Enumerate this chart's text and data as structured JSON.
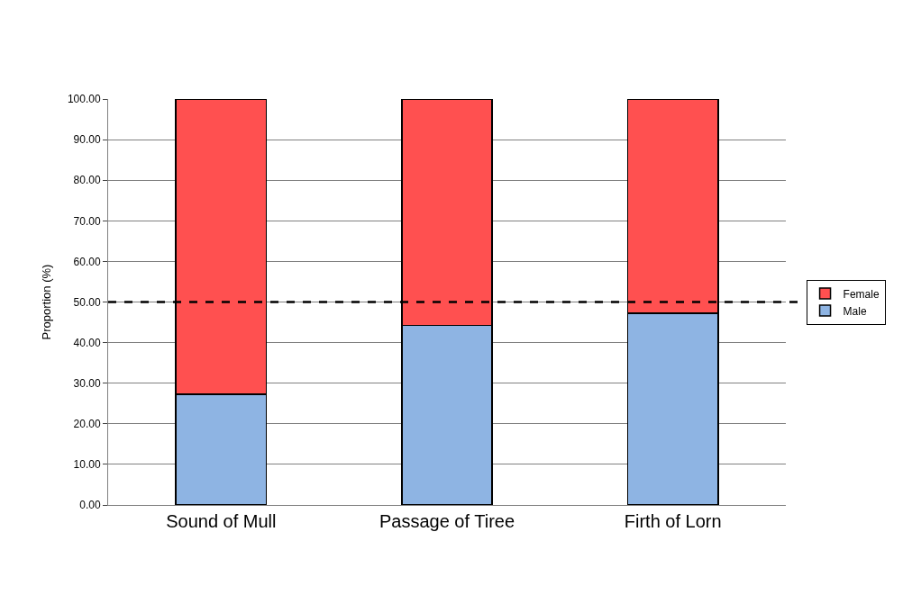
{
  "chart_data": {
    "type": "bar",
    "stacked": true,
    "ylabel": "Proportion (%)",
    "categories": [
      "Sound of Mull",
      "Passage of Tiree",
      "Firth of Lorn"
    ],
    "series": [
      {
        "name": "Male",
        "color": "#8eb4e3",
        "values": [
          27.3,
          44.2,
          47.2
        ]
      },
      {
        "name": "Female",
        "color": "#ff5050",
        "values": [
          72.7,
          55.8,
          52.8
        ]
      }
    ],
    "ylim": [
      0,
      100
    ],
    "yticks": [
      {
        "value": 0,
        "label": "0.00"
      },
      {
        "value": 10,
        "label": "10.00"
      },
      {
        "value": 20,
        "label": "20.00"
      },
      {
        "value": 30,
        "label": "30.00"
      },
      {
        "value": 40,
        "label": "40.00"
      },
      {
        "value": 50,
        "label": "50.00"
      },
      {
        "value": 60,
        "label": "60.00"
      },
      {
        "value": 70,
        "label": "70.00"
      },
      {
        "value": 80,
        "label": "80.00"
      },
      {
        "value": 90,
        "label": "90.00"
      },
      {
        "value": 100,
        "label": "100.00"
      }
    ],
    "ref_lines": [
      {
        "axis": "y",
        "value": 50,
        "color": "#000000",
        "line_style": "dashed"
      }
    ],
    "grid": "y",
    "legend": "right"
  }
}
